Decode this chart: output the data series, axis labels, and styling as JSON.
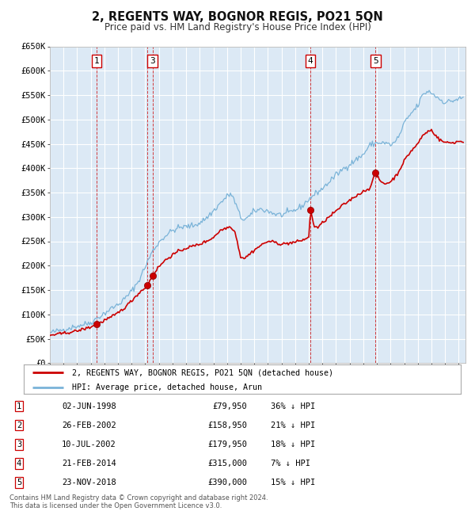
{
  "title": "2, REGENTS WAY, BOGNOR REGIS, PO21 5QN",
  "subtitle": "Price paid vs. HM Land Registry's House Price Index (HPI)",
  "plot_bg_color": "#dce9f5",
  "fig_bg_color": "#ffffff",
  "grid_color": "#ffffff",
  "hpi_line_color": "#7ab3d8",
  "price_line_color": "#cc0000",
  "transactions": [
    {
      "num": 1,
      "date_num": 1998.42,
      "price": 79950,
      "show_box": true
    },
    {
      "num": 2,
      "date_num": 2002.15,
      "price": 158950,
      "show_box": false
    },
    {
      "num": 3,
      "date_num": 2002.53,
      "price": 179950,
      "show_box": true
    },
    {
      "num": 4,
      "date_num": 2014.13,
      "price": 315000,
      "show_box": true
    },
    {
      "num": 5,
      "date_num": 2018.9,
      "price": 390000,
      "show_box": true
    }
  ],
  "table_rows": [
    [
      "1",
      "02-JUN-1998",
      "£79,950",
      "36% ↓ HPI"
    ],
    [
      "2",
      "26-FEB-2002",
      "£158,950",
      "21% ↓ HPI"
    ],
    [
      "3",
      "10-JUL-2002",
      "£179,950",
      "18% ↓ HPI"
    ],
    [
      "4",
      "21-FEB-2014",
      "£315,000",
      "7% ↓ HPI"
    ],
    [
      "5",
      "23-NOV-2018",
      "£390,000",
      "15% ↓ HPI"
    ]
  ],
  "footnote": "Contains HM Land Registry data © Crown copyright and database right 2024.\nThis data is licensed under the Open Government Licence v3.0.",
  "legend_price": "2, REGENTS WAY, BOGNOR REGIS, PO21 5QN (detached house)",
  "legend_hpi": "HPI: Average price, detached house, Arun",
  "ylim": [
    0,
    650000
  ],
  "yticks": [
    0,
    50000,
    100000,
    150000,
    200000,
    250000,
    300000,
    350000,
    400000,
    450000,
    500000,
    550000,
    600000,
    650000
  ],
  "xlim_start": 1995.0,
  "xlim_end": 2025.5,
  "hpi_anchors": [
    [
      1995.0,
      62000
    ],
    [
      1996.0,
      69000
    ],
    [
      1997.0,
      76000
    ],
    [
      1998.0,
      83000
    ],
    [
      1998.5,
      93000
    ],
    [
      1999.0,
      102000
    ],
    [
      1999.5,
      112000
    ],
    [
      2000.0,
      120000
    ],
    [
      2000.5,
      132000
    ],
    [
      2001.0,
      148000
    ],
    [
      2001.5,
      168000
    ],
    [
      2002.0,
      198000
    ],
    [
      2002.5,
      228000
    ],
    [
      2003.0,
      248000
    ],
    [
      2003.5,
      262000
    ],
    [
      2004.0,
      272000
    ],
    [
      2004.5,
      278000
    ],
    [
      2005.0,
      280000
    ],
    [
      2005.5,
      282000
    ],
    [
      2006.0,
      288000
    ],
    [
      2006.5,
      298000
    ],
    [
      2007.0,
      312000
    ],
    [
      2007.5,
      328000
    ],
    [
      2008.0,
      342000
    ],
    [
      2008.3,
      348000
    ],
    [
      2008.7,
      322000
    ],
    [
      2009.0,
      298000
    ],
    [
      2009.3,
      295000
    ],
    [
      2009.7,
      302000
    ],
    [
      2010.0,
      312000
    ],
    [
      2010.5,
      316000
    ],
    [
      2011.0,
      312000
    ],
    [
      2011.5,
      306000
    ],
    [
      2012.0,
      304000
    ],
    [
      2012.5,
      308000
    ],
    [
      2013.0,
      314000
    ],
    [
      2013.5,
      322000
    ],
    [
      2014.0,
      336000
    ],
    [
      2014.5,
      348000
    ],
    [
      2015.0,
      358000
    ],
    [
      2015.5,
      372000
    ],
    [
      2016.0,
      386000
    ],
    [
      2016.5,
      398000
    ],
    [
      2017.0,
      408000
    ],
    [
      2017.5,
      418000
    ],
    [
      2018.0,
      428000
    ],
    [
      2018.5,
      448000
    ],
    [
      2019.0,
      452000
    ],
    [
      2019.5,
      452000
    ],
    [
      2020.0,
      448000
    ],
    [
      2020.3,
      452000
    ],
    [
      2020.7,
      470000
    ],
    [
      2021.0,
      492000
    ],
    [
      2021.5,
      512000
    ],
    [
      2022.0,
      528000
    ],
    [
      2022.3,
      548000
    ],
    [
      2022.7,
      558000
    ],
    [
      2023.0,
      555000
    ],
    [
      2023.3,
      548000
    ],
    [
      2023.7,
      540000
    ],
    [
      2024.0,
      535000
    ],
    [
      2024.5,
      538000
    ],
    [
      2025.0,
      542000
    ],
    [
      2025.4,
      544000
    ]
  ],
  "price_anchors": [
    [
      1995.0,
      57000
    ],
    [
      1996.0,
      61000
    ],
    [
      1997.0,
      66000
    ],
    [
      1997.5,
      70000
    ],
    [
      1998.0,
      74000
    ],
    [
      1998.42,
      79950
    ],
    [
      1998.8,
      84000
    ],
    [
      1999.0,
      88000
    ],
    [
      1999.5,
      94000
    ],
    [
      2000.0,
      103000
    ],
    [
      2000.5,
      114000
    ],
    [
      2001.0,
      128000
    ],
    [
      2001.5,
      143000
    ],
    [
      2002.0,
      155000
    ],
    [
      2002.15,
      158950
    ],
    [
      2002.53,
      179950
    ],
    [
      2003.0,
      198000
    ],
    [
      2003.5,
      212000
    ],
    [
      2004.0,
      222000
    ],
    [
      2004.5,
      230000
    ],
    [
      2005.0,
      236000
    ],
    [
      2005.5,
      240000
    ],
    [
      2006.0,
      244000
    ],
    [
      2006.5,
      250000
    ],
    [
      2007.0,
      258000
    ],
    [
      2007.5,
      272000
    ],
    [
      2008.0,
      278000
    ],
    [
      2008.3,
      280000
    ],
    [
      2008.6,
      268000
    ],
    [
      2009.0,
      218000
    ],
    [
      2009.3,
      215000
    ],
    [
      2009.5,
      220000
    ],
    [
      2010.0,
      232000
    ],
    [
      2010.5,
      242000
    ],
    [
      2011.0,
      250000
    ],
    [
      2011.5,
      248000
    ],
    [
      2012.0,
      244000
    ],
    [
      2012.5,
      246000
    ],
    [
      2013.0,
      248000
    ],
    [
      2013.5,
      252000
    ],
    [
      2014.0,
      258000
    ],
    [
      2014.13,
      315000
    ],
    [
      2014.4,
      280000
    ],
    [
      2014.7,
      278000
    ],
    [
      2015.0,
      288000
    ],
    [
      2015.5,
      300000
    ],
    [
      2016.0,
      312000
    ],
    [
      2016.5,
      324000
    ],
    [
      2017.0,
      334000
    ],
    [
      2017.5,
      344000
    ],
    [
      2018.0,
      352000
    ],
    [
      2018.5,
      360000
    ],
    [
      2018.9,
      390000
    ],
    [
      2019.0,
      383000
    ],
    [
      2019.3,
      372000
    ],
    [
      2019.6,
      368000
    ],
    [
      2020.0,
      372000
    ],
    [
      2020.5,
      388000
    ],
    [
      2021.0,
      415000
    ],
    [
      2021.5,
      435000
    ],
    [
      2022.0,
      450000
    ],
    [
      2022.3,
      465000
    ],
    [
      2022.7,
      475000
    ],
    [
      2023.0,
      478000
    ],
    [
      2023.3,
      468000
    ],
    [
      2023.6,
      458000
    ],
    [
      2024.0,
      453000
    ],
    [
      2024.5,
      452000
    ],
    [
      2025.0,
      455000
    ],
    [
      2025.4,
      454000
    ]
  ]
}
